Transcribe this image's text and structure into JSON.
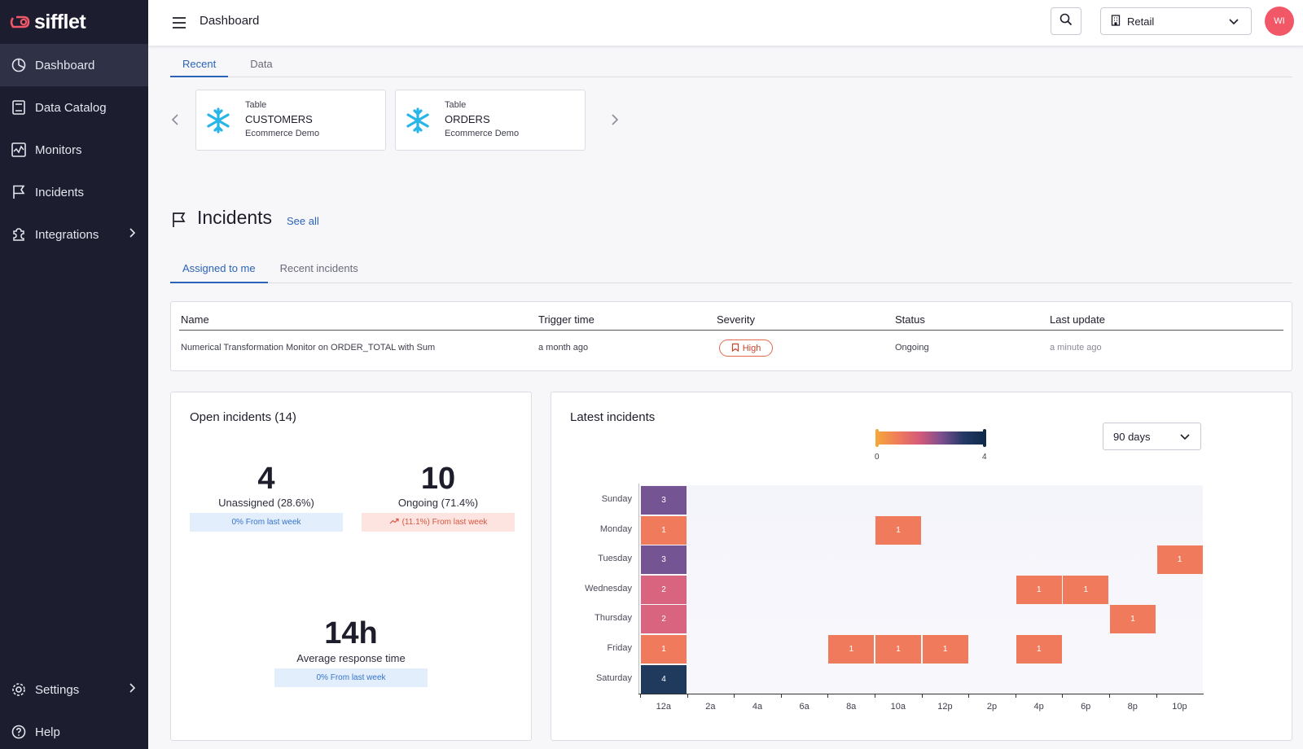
{
  "brand": {
    "name": "sifflet"
  },
  "sidebar": {
    "items": [
      {
        "label": "Dashboard",
        "icon": "dashboard-icon",
        "active": true
      },
      {
        "label": "Data Catalog",
        "icon": "book-icon"
      },
      {
        "label": "Monitors",
        "icon": "monitor-chart-icon"
      },
      {
        "label": "Incidents",
        "icon": "flag-icon"
      },
      {
        "label": "Integrations",
        "icon": "puzzle-icon",
        "has_submenu": true
      }
    ],
    "bottom": [
      {
        "label": "Settings",
        "icon": "gear-icon",
        "has_submenu": true
      },
      {
        "label": "Help",
        "icon": "help-icon"
      }
    ]
  },
  "header": {
    "title": "Dashboard",
    "domain_select": "Retail",
    "avatar_initials": "WI"
  },
  "recent": {
    "tabs": [
      {
        "label": "Recent",
        "active": true
      },
      {
        "label": "Data"
      }
    ],
    "cards": [
      {
        "type": "Table",
        "name": "CUSTOMERS",
        "domain": "Ecommerce Demo"
      },
      {
        "type": "Table",
        "name": "ORDERS",
        "domain": "Ecommerce Demo"
      }
    ]
  },
  "incidents": {
    "title": "Incidents",
    "see_all": "See all",
    "tabs": [
      {
        "label": "Assigned to me",
        "active": true
      },
      {
        "label": "Recent incidents"
      }
    ],
    "table": {
      "columns": [
        "Name",
        "Trigger time",
        "Severity",
        "Status",
        "Last update"
      ],
      "rows": [
        {
          "name": "Numerical Transformation Monitor on ORDER_TOTAL with Sum",
          "trigger_time": "a month ago",
          "severity": "High",
          "status": "Ongoing",
          "last_update": "a minute ago"
        }
      ]
    }
  },
  "open_incidents": {
    "title": "Open incidents (14)",
    "unassigned": {
      "value": "4",
      "label": "Unassigned (28.6%)",
      "trend": "0% From last week"
    },
    "ongoing": {
      "value": "10",
      "label": "Ongoing (71.4%)",
      "trend": "(11.1%) From last week"
    },
    "response": {
      "value": "14h",
      "label": "Average response time",
      "trend": "0% From last week"
    }
  },
  "latest_incidents": {
    "title": "Latest incidents",
    "period": "90 days",
    "legend_min": "0",
    "legend_max": "4"
  },
  "chart_data": {
    "type": "heatmap",
    "title": "Latest incidents",
    "days": [
      "Sunday",
      "Monday",
      "Tuesday",
      "Wednesday",
      "Thursday",
      "Friday",
      "Saturday"
    ],
    "x_ticks": [
      "12a",
      "2a",
      "4a",
      "6a",
      "8a",
      "10a",
      "12p",
      "2p",
      "4p",
      "6p",
      "8p",
      "10p"
    ],
    "value_range": [
      0,
      4
    ],
    "cells": [
      {
        "day": "Sunday",
        "slot": "12a",
        "value": 3
      },
      {
        "day": "Monday",
        "slot": "12a",
        "value": 1
      },
      {
        "day": "Monday",
        "slot": "10a",
        "value": 1
      },
      {
        "day": "Tuesday",
        "slot": "12a",
        "value": 3
      },
      {
        "day": "Tuesday",
        "slot": "10p",
        "value": 1
      },
      {
        "day": "Wednesday",
        "slot": "12a",
        "value": 2
      },
      {
        "day": "Wednesday",
        "slot": "4p",
        "value": 1
      },
      {
        "day": "Wednesday",
        "slot": "6p",
        "value": 1
      },
      {
        "day": "Thursday",
        "slot": "12a",
        "value": 2
      },
      {
        "day": "Thursday",
        "slot": "8p",
        "value": 1
      },
      {
        "day": "Friday",
        "slot": "12a",
        "value": 1
      },
      {
        "day": "Friday",
        "slot": "8a",
        "value": 1
      },
      {
        "day": "Friday",
        "slot": "10a",
        "value": 1
      },
      {
        "day": "Friday",
        "slot": "12p",
        "value": 1
      },
      {
        "day": "Friday",
        "slot": "4p",
        "value": 1
      },
      {
        "day": "Saturday",
        "slot": "12a",
        "value": 4
      }
    ],
    "colors": {
      "1": "#f07a5c",
      "2": "#d96480",
      "3": "#755493",
      "4": "#1f3a5c"
    }
  }
}
